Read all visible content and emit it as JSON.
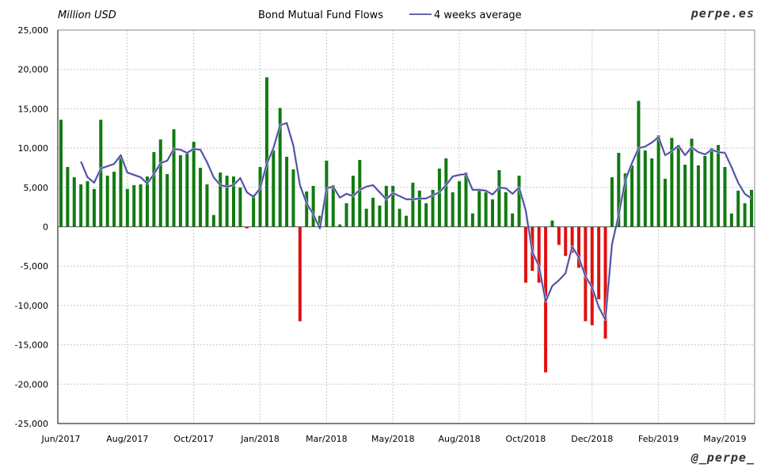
{
  "chart_data": {
    "type": "bar",
    "title": "Bond Mutual Fund Flows",
    "unit_label": "Million USD",
    "ylim": [
      -25000,
      25000
    ],
    "ytick_step": 5000,
    "y_tick_labels": [
      "25,000",
      "20,000",
      "15,000",
      "10,000",
      "5,000",
      "0",
      "-5,000",
      "-10,000",
      "-15,000",
      "-20,000",
      "-25,000"
    ],
    "x_tick_labels": [
      "Jun/2017",
      "Aug/2017",
      "Oct/2017",
      "Jan/2018",
      "Mar/2018",
      "May/2018",
      "Aug/2018",
      "Oct/2018",
      "Dec/2018",
      "Feb/2019",
      "May/2019"
    ],
    "x_tick_index": [
      0,
      10,
      20,
      30,
      40,
      50,
      60,
      70,
      80,
      90,
      100
    ],
    "grid": true,
    "legend_position": "top-center",
    "colors": {
      "positive": "#117a11",
      "negative": "#e01010",
      "average": "#333399",
      "average_glow": "#b9b9dd"
    },
    "series": [
      {
        "name": "Bond Mutual Fund Flows",
        "values": [
          13600,
          7600,
          6300,
          5400,
          5800,
          4800,
          13600,
          6500,
          7000,
          9100,
          4800,
          5300,
          5400,
          6400,
          9500,
          11100,
          6700,
          12400,
          9100,
          9300,
          10800,
          7500,
          5400,
          1500,
          6900,
          6500,
          6400,
          5000,
          -200,
          4100,
          7600,
          19000,
          9700,
          15100,
          8900,
          7300,
          -12000,
          4500,
          5200,
          1400,
          8400,
          5300,
          300,
          3000,
          6500,
          8500,
          2300,
          3700,
          2700,
          5200,
          5200,
          2300,
          1400,
          5600,
          4600,
          3000,
          4700,
          7400,
          8700,
          4400,
          5800,
          6900,
          1700,
          4600,
          4400,
          3500,
          7200,
          4400,
          1700,
          6500,
          -7100,
          -5600,
          -7100,
          -18500,
          800,
          -2300,
          -3700,
          -3300,
          -5200,
          -12000,
          -12500,
          -9200,
          -14200,
          6300,
          9400,
          6800,
          7800,
          16000,
          9700,
          8700,
          11600,
          6100,
          11300,
          10400,
          7900,
          11200,
          7800,
          9000,
          10000,
          10400,
          7600,
          1700,
          4600,
          3000,
          4700
        ]
      },
      {
        "name": "4 weeks average",
        "values": [
          null,
          null,
          null,
          8300,
          6300,
          5600,
          7400,
          7700,
          8000,
          9100,
          6900,
          6600,
          6300,
          5500,
          6700,
          8100,
          8400,
          9900,
          9800,
          9400,
          9900,
          9800,
          8200,
          6300,
          5300,
          5100,
          5300,
          6200,
          4400,
          3800,
          4900,
          8000,
          10000,
          12900,
          13200,
          10300,
          5300,
          3000,
          1600,
          -200,
          4900,
          5100,
          3700,
          4200,
          3900,
          4700,
          5100,
          5300,
          4400,
          3500,
          4300,
          3900,
          3500,
          3500,
          3600,
          3600,
          4000,
          4400,
          5300,
          6400,
          6600,
          6700,
          4700,
          4700,
          4600,
          4100,
          5000,
          4900,
          4200,
          5000,
          2100,
          -3200,
          -5000,
          -9500,
          -7500,
          -6800,
          -5900,
          -2500,
          -3900,
          -6300,
          -7700,
          -10200,
          -11800,
          -2200,
          1500,
          5900,
          8100,
          10000,
          10200,
          10700,
          11400,
          9100,
          9600,
          10300,
          9100,
          10100,
          9500,
          9200,
          9800,
          9500,
          9400,
          7600,
          5600,
          4200,
          3600
        ]
      }
    ]
  },
  "branding": {
    "top_right": "perpe.es",
    "bottom_right": "@_perpe_"
  }
}
